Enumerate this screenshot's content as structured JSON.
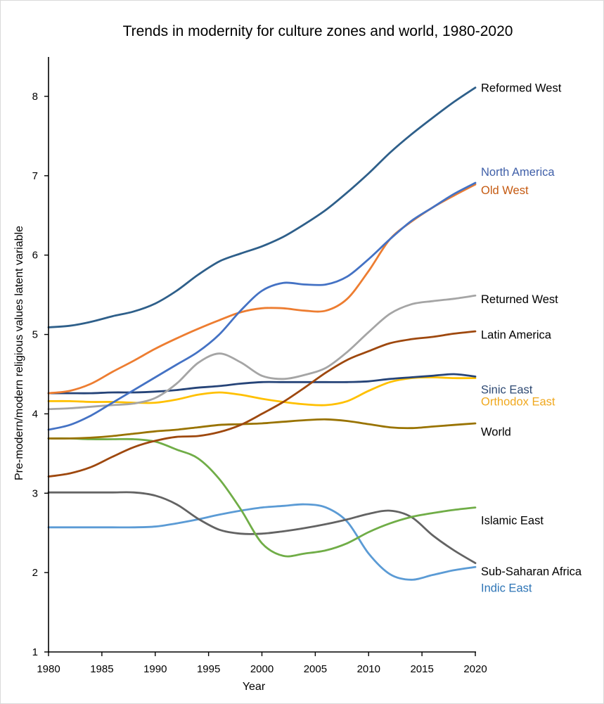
{
  "chart_data": {
    "type": "line",
    "title": "Trends in modernity for culture zones and world, 1980-2020",
    "xlabel": "Year",
    "ylabel": "Pre-modern/modern religious values latent variable",
    "xlim": [
      1980,
      2020
    ],
    "ylim": [
      1,
      8.5
    ],
    "x_ticks": [
      1980,
      1985,
      1990,
      1995,
      2000,
      2005,
      2010,
      2015,
      2020
    ],
    "y_ticks": [
      1,
      2,
      3,
      4,
      5,
      6,
      7,
      8
    ],
    "grid": false,
    "legend": "inline-right",
    "x": [
      1980,
      1982,
      1984,
      1986,
      1988,
      1990,
      1992,
      1994,
      1996,
      1998,
      2000,
      2002,
      2004,
      2006,
      2008,
      2010,
      2012,
      2014,
      2016,
      2018,
      2020
    ],
    "series": [
      {
        "name": "Reformed West",
        "color": "#2e5f8a",
        "label_color": "#000000",
        "values": [
          5.09,
          5.11,
          5.16,
          5.23,
          5.29,
          5.39,
          5.55,
          5.75,
          5.92,
          6.02,
          6.11,
          6.23,
          6.39,
          6.57,
          6.79,
          7.03,
          7.29,
          7.52,
          7.73,
          7.93,
          8.11
        ]
      },
      {
        "name": "North America",
        "color": "#4472c4",
        "label_color": "#3f5fa8",
        "values": [
          3.8,
          3.86,
          3.98,
          4.14,
          4.3,
          4.46,
          4.62,
          4.78,
          5.0,
          5.3,
          5.55,
          5.65,
          5.63,
          5.63,
          5.73,
          5.95,
          6.2,
          6.43,
          6.6,
          6.77,
          6.91
        ]
      },
      {
        "name": "Old West",
        "color": "#ed7d31",
        "label_color": "#c55a11",
        "values": [
          4.26,
          4.29,
          4.38,
          4.53,
          4.67,
          4.82,
          4.95,
          5.07,
          5.18,
          5.28,
          5.33,
          5.33,
          5.3,
          5.3,
          5.45,
          5.8,
          6.2,
          6.42,
          6.6,
          6.75,
          6.89
        ]
      },
      {
        "name": "Returned West",
        "color": "#a5a5a5",
        "label_color": "#000000",
        "values": [
          4.06,
          4.07,
          4.09,
          4.11,
          4.13,
          4.2,
          4.38,
          4.64,
          4.76,
          4.65,
          4.48,
          4.44,
          4.49,
          4.58,
          4.78,
          5.03,
          5.26,
          5.38,
          5.42,
          5.45,
          5.49
        ]
      },
      {
        "name": "Latin America",
        "color": "#9e480e",
        "label_color": "#000000",
        "values": [
          3.21,
          3.25,
          3.33,
          3.46,
          3.58,
          3.66,
          3.71,
          3.72,
          3.77,
          3.86,
          4.0,
          4.15,
          4.33,
          4.52,
          4.68,
          4.79,
          4.89,
          4.94,
          4.97,
          5.01,
          5.04
        ]
      },
      {
        "name": "Sinic East",
        "color": "#264478",
        "label_color": "#2f4a73",
        "values": [
          4.26,
          4.26,
          4.26,
          4.27,
          4.27,
          4.28,
          4.3,
          4.33,
          4.35,
          4.38,
          4.4,
          4.4,
          4.4,
          4.4,
          4.4,
          4.41,
          4.44,
          4.46,
          4.48,
          4.5,
          4.47
        ]
      },
      {
        "name": "Orthodox East",
        "color": "#ffc000",
        "label_color": "#f0a81e",
        "values": [
          4.16,
          4.16,
          4.15,
          4.15,
          4.14,
          4.14,
          4.18,
          4.24,
          4.27,
          4.24,
          4.19,
          4.15,
          4.12,
          4.11,
          4.16,
          4.29,
          4.4,
          4.45,
          4.46,
          4.45,
          4.45
        ]
      },
      {
        "name": "World",
        "color": "#997300",
        "label_color": "#000000",
        "values": [
          3.69,
          3.69,
          3.7,
          3.72,
          3.75,
          3.78,
          3.8,
          3.83,
          3.86,
          3.87,
          3.88,
          3.9,
          3.92,
          3.93,
          3.91,
          3.87,
          3.83,
          3.82,
          3.84,
          3.86,
          3.88
        ]
      },
      {
        "name": "Islamic East",
        "color": "#70ad47",
        "label_color": "#000000",
        "values": [
          3.69,
          3.69,
          3.68,
          3.68,
          3.68,
          3.65,
          3.55,
          3.44,
          3.18,
          2.8,
          2.37,
          2.21,
          2.24,
          2.28,
          2.37,
          2.51,
          2.62,
          2.7,
          2.75,
          2.79,
          2.82
        ]
      },
      {
        "name": "Sub-Saharan Africa",
        "color": "#636363",
        "label_color": "#000000",
        "values": [
          3.01,
          3.01,
          3.01,
          3.01,
          3.01,
          2.97,
          2.86,
          2.68,
          2.54,
          2.49,
          2.49,
          2.52,
          2.56,
          2.61,
          2.67,
          2.74,
          2.78,
          2.7,
          2.47,
          2.28,
          2.12
        ]
      },
      {
        "name": "Indic East",
        "color": "#5b9bd5",
        "label_color": "#2e75b6",
        "values": [
          2.57,
          2.57,
          2.57,
          2.57,
          2.57,
          2.58,
          2.62,
          2.67,
          2.73,
          2.78,
          2.82,
          2.84,
          2.86,
          2.82,
          2.64,
          2.24,
          1.98,
          1.91,
          1.97,
          2.03,
          2.07
        ]
      }
    ],
    "label_values": {
      "Reformed West": 8.11,
      "North America": 7.05,
      "Old West": 6.82,
      "Returned West": 5.45,
      "Latin America": 5.0,
      "Sinic East": 4.31,
      "Orthodox East": 4.16,
      "World": 3.78,
      "Islamic East": 2.66,
      "Sub-Saharan Africa": 2.02,
      "Indic East": 1.81
    }
  }
}
